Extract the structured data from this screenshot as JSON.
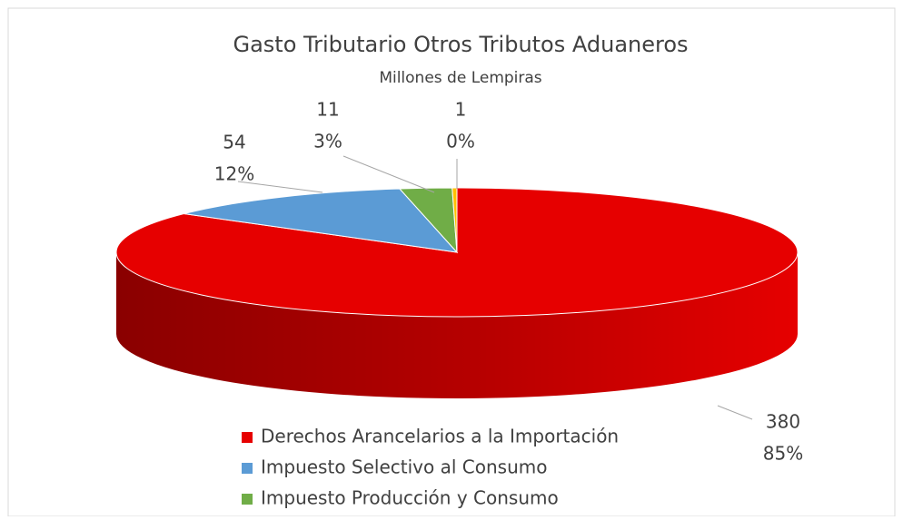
{
  "chart_data": {
    "type": "pie3d",
    "title": "Gasto Tributario Otros Tributos Aduaneros",
    "subtitle": "Millones de Lempiras",
    "categories": [
      "Derechos Arancelarios a la Importación",
      "Impuesto Selectivo al Consumo",
      "Impuesto Producción y Consumo",
      null
    ],
    "values": [
      380,
      54,
      11,
      1
    ],
    "percent_labels": [
      "85%",
      "12%",
      "3%",
      "0%"
    ],
    "colors": [
      "#e60000",
      "#5b9bd5",
      "#70ad47",
      "#ffc000"
    ],
    "legend": "bottom"
  }
}
